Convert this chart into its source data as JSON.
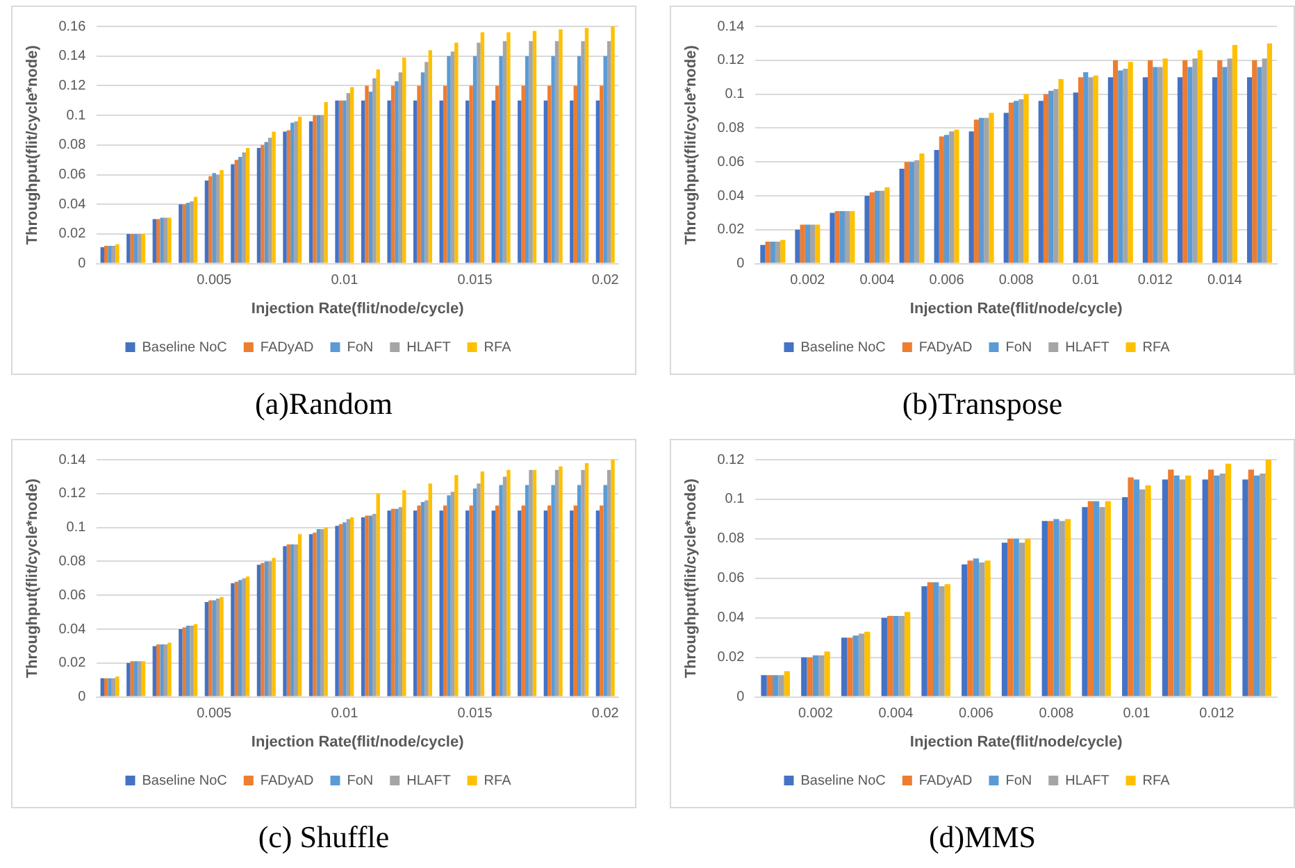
{
  "chart_data": [
    {
      "type": "bar",
      "title": "(a)Random",
      "xlabel": "Injection Rate(flit/node/cycle)",
      "ylabel": "Throughput(flit/cycle*node)",
      "categories": [
        null,
        null,
        null,
        null,
        "0.005",
        null,
        null,
        null,
        null,
        "0.01",
        null,
        null,
        null,
        null,
        "0.015",
        null,
        null,
        null,
        null,
        "0.02"
      ],
      "ylim": [
        0,
        0.16
      ],
      "yticks": [
        0,
        0.02,
        0.04,
        0.06,
        0.08,
        0.1,
        0.12,
        0.14,
        0.16
      ],
      "grid": "y",
      "legend": "bottom",
      "series": [
        {
          "name": "Baseline NoC",
          "color": "#4472c4",
          "values": [
            0.011,
            0.02,
            0.03,
            0.04,
            0.056,
            0.067,
            0.078,
            0.089,
            0.096,
            0.11,
            0.11,
            0.11,
            0.11,
            0.11,
            0.11,
            0.11,
            0.11,
            0.11,
            0.11,
            0.11
          ]
        },
        {
          "name": "FADyAD",
          "color": "#ed7d31",
          "values": [
            0.012,
            0.02,
            0.03,
            0.04,
            0.059,
            0.07,
            0.08,
            0.09,
            0.1,
            0.11,
            0.12,
            0.12,
            0.12,
            0.12,
            0.12,
            0.12,
            0.12,
            0.12,
            0.12,
            0.12
          ]
        },
        {
          "name": "FoN",
          "color": "#5b9bd5",
          "values": [
            0.012,
            0.02,
            0.031,
            0.041,
            0.061,
            0.072,
            0.082,
            0.095,
            0.1,
            0.11,
            0.116,
            0.123,
            0.129,
            0.14,
            0.14,
            0.14,
            0.14,
            0.14,
            0.14,
            0.14
          ]
        },
        {
          "name": "HLAFT",
          "color": "#a5a5a5",
          "values": [
            0.012,
            0.02,
            0.031,
            0.042,
            0.06,
            0.075,
            0.085,
            0.096,
            0.1,
            0.115,
            0.125,
            0.129,
            0.136,
            0.143,
            0.149,
            0.15,
            0.15,
            0.15,
            0.15,
            0.15
          ]
        },
        {
          "name": "RFA",
          "color": "#ffc000",
          "values": [
            0.013,
            0.02,
            0.031,
            0.045,
            0.063,
            0.078,
            0.089,
            0.099,
            0.109,
            0.119,
            0.131,
            0.139,
            0.144,
            0.149,
            0.156,
            0.156,
            0.157,
            0.158,
            0.159,
            0.16
          ]
        }
      ]
    },
    {
      "type": "bar",
      "title": "(b)Transpose",
      "xlabel": "Injection Rate(flit/node/cycle)",
      "ylabel": "Throughput(flit/cycle*node)",
      "categories": [
        null,
        "0.002",
        null,
        "0.004",
        null,
        "0.006",
        null,
        "0.008",
        null,
        "0.01",
        null,
        "0.012",
        null,
        "0.014",
        null
      ],
      "ylim": [
        0,
        0.14
      ],
      "yticks": [
        0,
        0.02,
        0.04,
        0.06,
        0.08,
        0.1,
        0.12,
        0.14
      ],
      "grid": "y",
      "legend": "bottom",
      "series": [
        {
          "name": "Baseline NoC",
          "color": "#4472c4",
          "values": [
            0.011,
            0.02,
            0.03,
            0.04,
            0.056,
            0.067,
            0.078,
            0.089,
            0.096,
            0.101,
            0.11,
            0.11,
            0.11,
            0.11,
            0.11
          ]
        },
        {
          "name": "FADyAD",
          "color": "#ed7d31",
          "values": [
            0.013,
            0.023,
            0.031,
            0.042,
            0.06,
            0.075,
            0.085,
            0.095,
            0.1,
            0.11,
            0.12,
            0.12,
            0.12,
            0.12,
            0.12
          ]
        },
        {
          "name": "FoN",
          "color": "#5b9bd5",
          "values": [
            0.013,
            0.023,
            0.031,
            0.043,
            0.06,
            0.076,
            0.086,
            0.096,
            0.102,
            0.113,
            0.114,
            0.116,
            0.116,
            0.116,
            0.116
          ]
        },
        {
          "name": "HLAFT",
          "color": "#a5a5a5",
          "values": [
            0.013,
            0.023,
            0.031,
            0.043,
            0.061,
            0.078,
            0.086,
            0.097,
            0.103,
            0.11,
            0.115,
            0.116,
            0.121,
            0.121,
            0.121
          ]
        },
        {
          "name": "RFA",
          "color": "#ffc000",
          "values": [
            0.014,
            0.023,
            0.031,
            0.045,
            0.065,
            0.079,
            0.089,
            0.1,
            0.109,
            0.111,
            0.119,
            0.121,
            0.126,
            0.129,
            0.13
          ]
        }
      ]
    },
    {
      "type": "bar",
      "title": "(c) Shuffle",
      "xlabel": "Injection Rate(flit/node/cycle)",
      "ylabel": "Throughput(flit/cycle*node)",
      "categories": [
        null,
        null,
        null,
        null,
        "0.005",
        null,
        null,
        null,
        null,
        "0.01",
        null,
        null,
        null,
        null,
        "0.015",
        null,
        null,
        null,
        null,
        "0.02"
      ],
      "ylim": [
        0,
        0.14
      ],
      "yticks": [
        0,
        0.02,
        0.04,
        0.06,
        0.08,
        0.1,
        0.12,
        0.14
      ],
      "grid": "y",
      "legend": "bottom",
      "series": [
        {
          "name": "Baseline NoC",
          "color": "#4472c4",
          "values": [
            0.011,
            0.02,
            0.03,
            0.04,
            0.056,
            0.067,
            0.078,
            0.089,
            0.096,
            0.101,
            0.106,
            0.11,
            0.11,
            0.11,
            0.11,
            0.11,
            0.11,
            0.11,
            0.11,
            0.11
          ]
        },
        {
          "name": "FADyAD",
          "color": "#ed7d31",
          "values": [
            0.011,
            0.021,
            0.031,
            0.041,
            0.057,
            0.068,
            0.079,
            0.09,
            0.097,
            0.102,
            0.107,
            0.111,
            0.113,
            0.113,
            0.113,
            0.113,
            0.113,
            0.113,
            0.113,
            0.113
          ]
        },
        {
          "name": "FoN",
          "color": "#5b9bd5",
          "values": [
            0.011,
            0.021,
            0.031,
            0.042,
            0.057,
            0.069,
            0.08,
            0.09,
            0.099,
            0.103,
            0.107,
            0.111,
            0.115,
            0.119,
            0.123,
            0.125,
            0.125,
            0.125,
            0.125,
            0.125
          ]
        },
        {
          "name": "HLAFT",
          "color": "#a5a5a5",
          "values": [
            0.011,
            0.021,
            0.031,
            0.042,
            0.058,
            0.07,
            0.08,
            0.09,
            0.099,
            0.105,
            0.108,
            0.112,
            0.116,
            0.121,
            0.126,
            0.13,
            0.134,
            0.134,
            0.134,
            0.134
          ]
        },
        {
          "name": "RFA",
          "color": "#ffc000",
          "values": [
            0.012,
            0.021,
            0.032,
            0.043,
            0.059,
            0.071,
            0.082,
            0.096,
            0.1,
            0.106,
            0.12,
            0.122,
            0.126,
            0.131,
            0.133,
            0.134,
            0.134,
            0.136,
            0.138,
            0.14
          ]
        }
      ]
    },
    {
      "type": "bar",
      "title": "(d)MMS",
      "xlabel": "Injection Rate(flit/node/cycle)",
      "ylabel": "Throughput(flit/cycle*node)",
      "categories": [
        null,
        "0.002",
        null,
        "0.004",
        null,
        "0.006",
        null,
        "0.008",
        null,
        "0.01",
        null,
        "0.012",
        null
      ],
      "ylim": [
        0,
        0.12
      ],
      "yticks": [
        0,
        0.02,
        0.04,
        0.06,
        0.08,
        0.1,
        0.12
      ],
      "grid": "y",
      "legend": "bottom",
      "series": [
        {
          "name": "Baseline NoC",
          "color": "#4472c4",
          "values": [
            0.011,
            0.02,
            0.03,
            0.04,
            0.056,
            0.067,
            0.078,
            0.089,
            0.096,
            0.101,
            0.11,
            0.11,
            0.11
          ]
        },
        {
          "name": "FADyAD",
          "color": "#ed7d31",
          "values": [
            0.011,
            0.02,
            0.03,
            0.041,
            0.058,
            0.069,
            0.08,
            0.089,
            0.099,
            0.111,
            0.115,
            0.115,
            0.115
          ]
        },
        {
          "name": "FoN",
          "color": "#5b9bd5",
          "values": [
            0.011,
            0.021,
            0.031,
            0.041,
            0.058,
            0.07,
            0.08,
            0.09,
            0.099,
            0.11,
            0.112,
            0.112,
            0.112
          ]
        },
        {
          "name": "HLAFT",
          "color": "#a5a5a5",
          "values": [
            0.011,
            0.021,
            0.032,
            0.041,
            0.056,
            0.068,
            0.078,
            0.089,
            0.096,
            0.105,
            0.11,
            0.113,
            0.113
          ]
        },
        {
          "name": "RFA",
          "color": "#ffc000",
          "values": [
            0.013,
            0.023,
            0.033,
            0.043,
            0.057,
            0.069,
            0.08,
            0.09,
            0.099,
            0.107,
            0.112,
            0.118,
            0.12
          ]
        }
      ]
    }
  ]
}
